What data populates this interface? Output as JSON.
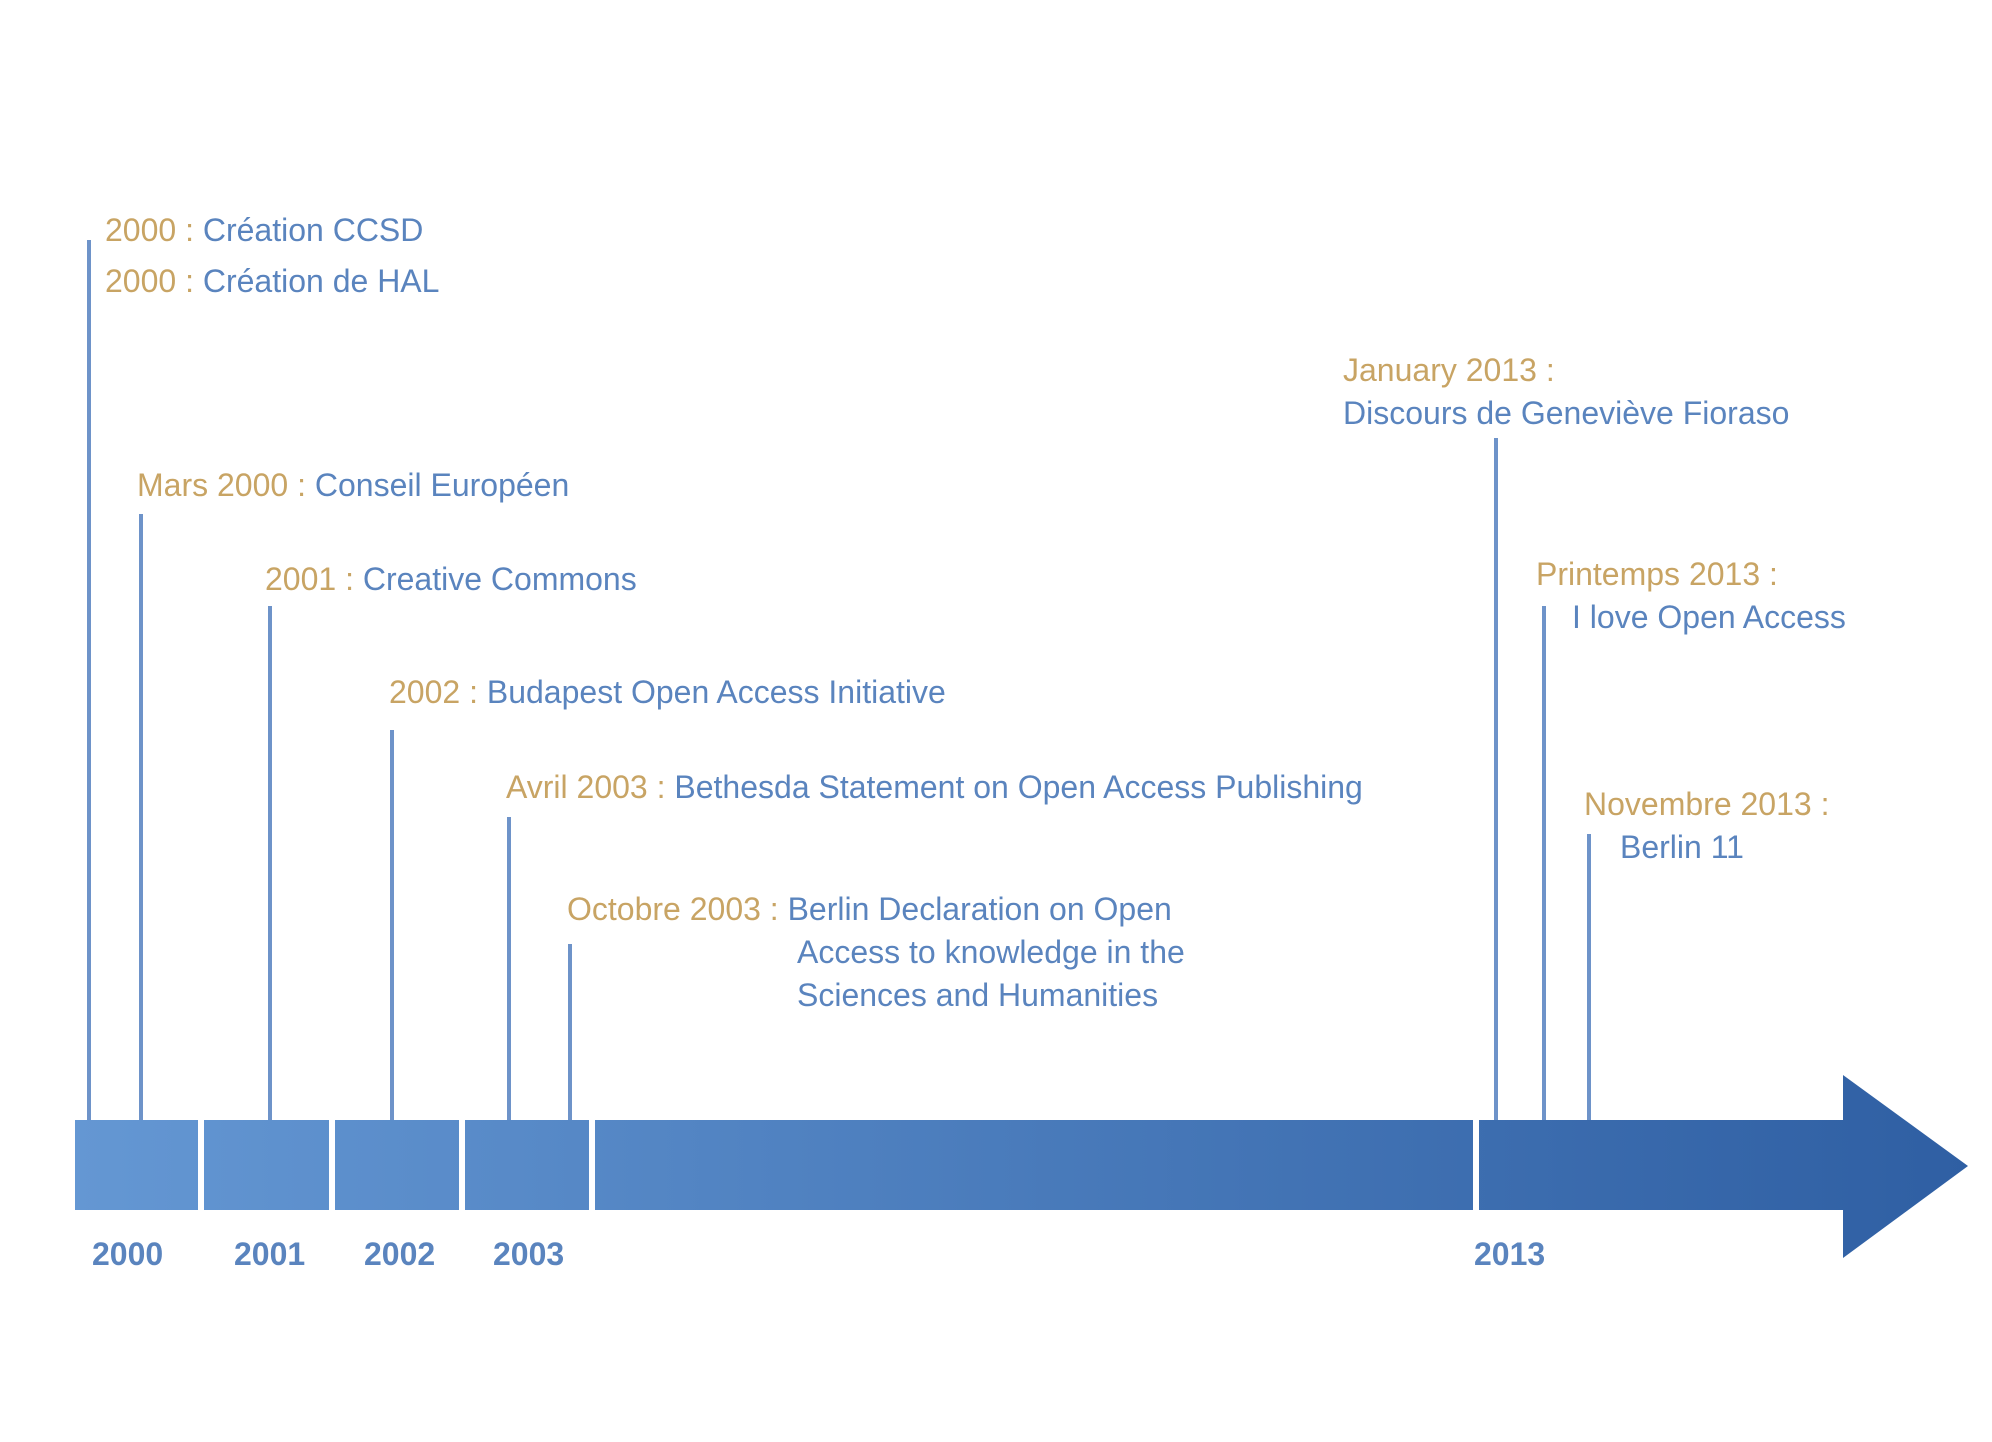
{
  "colors": {
    "date": "#C8A464",
    "text": "#5A84BE",
    "bar_start": "#6497D3",
    "bar_end": "#2F5FA3",
    "stem": "#6E93C9"
  },
  "years": [
    "2000",
    "2001",
    "2002",
    "2003",
    "2013"
  ],
  "events": [
    {
      "date": "2000 :",
      "text": "Création CCSD"
    },
    {
      "date": "2000 :",
      "text": "Création de HAL"
    },
    {
      "date": "Mars 2000 :",
      "text": "Conseil Européen"
    },
    {
      "date": "2001 :",
      "text": "Creative Commons"
    },
    {
      "date": "2002 :",
      "text": "Budapest Open Access Initiative"
    },
    {
      "date": "Avril 2003 :",
      "text": "Bethesda Statement on Open Access Publishing"
    },
    {
      "date": "Octobre 2003 :",
      "text": "Berlin Declaration on Open",
      "text2": "Access to knowledge in the",
      "text3": "Sciences and Humanities"
    },
    {
      "date": "January 2013 :",
      "text": "Discours de Geneviève Fioraso"
    },
    {
      "date": "Printemps 2013 :",
      "text": "I love Open Access"
    },
    {
      "date": "Novembre 2013 :",
      "text": "Berlin 11"
    }
  ]
}
